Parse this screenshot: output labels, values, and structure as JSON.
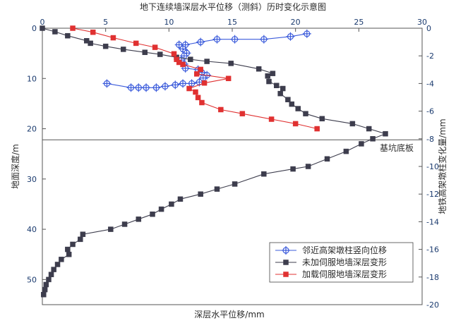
{
  "chart_data": {
    "type": "line",
    "title": "地下连续墙深层水平位移（测斜）历时变化示意图",
    "xlabel": "深层水平位移/mm",
    "ylabel_left": "地面深度/m",
    "ylabel_right": "地铁高架墩柱变化量/mm",
    "x_axis": {
      "min": 0,
      "max": 30,
      "ticks": [
        0,
        5,
        10,
        15,
        20,
        25,
        30
      ]
    },
    "y_left": {
      "min": 0,
      "max": 55,
      "ticks": [
        0,
        10,
        20,
        30,
        40,
        50
      ],
      "inverted": true
    },
    "y_right": {
      "min": 0,
      "max": -20,
      "ticks": [
        0,
        -2,
        -4,
        -6,
        -8,
        -10,
        -12,
        -14,
        -16,
        -18,
        -20
      ]
    },
    "annotation": {
      "text": "基坑底板",
      "depth": 22.2
    },
    "legend_position": "bottom-right",
    "series": [
      {
        "name": "邻近高架墩柱竖向位移",
        "axis": "right",
        "color": "#3b5bdb",
        "marker": "plus-circle",
        "points": [
          [
            20.9,
            -0.4
          ],
          [
            19.6,
            -0.6
          ],
          [
            17.5,
            -0.8
          ],
          [
            15.2,
            -0.8
          ],
          [
            13.8,
            -0.8
          ],
          [
            12.5,
            -1.0
          ],
          [
            11.3,
            -1.2
          ],
          [
            10.8,
            -1.2
          ],
          [
            11.1,
            -1.5
          ],
          [
            11.3,
            -1.7
          ],
          [
            11.4,
            -1.8
          ],
          [
            11.2,
            -2.0
          ],
          [
            11.0,
            -2.3
          ],
          [
            11.2,
            -2.6
          ],
          [
            11.3,
            -2.9
          ],
          [
            12.3,
            -3.0
          ],
          [
            12.6,
            -3.2
          ],
          [
            13.0,
            -3.4
          ],
          [
            12.7,
            -3.6
          ],
          [
            12.4,
            -3.9
          ],
          [
            11.8,
            -4.0
          ],
          [
            11.1,
            -4.0
          ],
          [
            10.5,
            -4.1
          ],
          [
            9.7,
            -4.2
          ],
          [
            9.0,
            -4.3
          ],
          [
            8.2,
            -4.3
          ],
          [
            7.6,
            -4.3
          ],
          [
            7.0,
            -4.3
          ],
          [
            5.1,
            -4.0
          ]
        ]
      },
      {
        "name": "未加伺服地墙深层变形",
        "axis": "left",
        "color": "#3d3d4d",
        "marker": "square",
        "points": [
          [
            0,
            0
          ],
          [
            1.0,
            0.7
          ],
          [
            2.0,
            1.5
          ],
          [
            3.5,
            2.5
          ],
          [
            3.8,
            3.0
          ],
          [
            5.0,
            3.6
          ],
          [
            6.4,
            4.2
          ],
          [
            8.1,
            4.8
          ],
          [
            9.3,
            5.2
          ],
          [
            10.6,
            5.8
          ],
          [
            11.7,
            6.2
          ],
          [
            13.0,
            6.6
          ],
          [
            14.9,
            7.0
          ],
          [
            17.1,
            8.1
          ],
          [
            18.2,
            9.0
          ],
          [
            17.8,
            9.5
          ],
          [
            17.9,
            10.6
          ],
          [
            18.5,
            11.4
          ],
          [
            19.0,
            12.0
          ],
          [
            18.8,
            13.0
          ],
          [
            19.4,
            14.2
          ],
          [
            19.7,
            15.1
          ],
          [
            20.2,
            16.0
          ],
          [
            20.8,
            17.0
          ],
          [
            22.1,
            18.0
          ],
          [
            24.5,
            19.0
          ],
          [
            25.8,
            20.0
          ],
          [
            27.1,
            21.0
          ],
          [
            26.1,
            22.0
          ],
          [
            25.2,
            23.0
          ],
          [
            24.0,
            24.5
          ],
          [
            22.5,
            26.0
          ],
          [
            21.0,
            27.5
          ],
          [
            19.8,
            28.0
          ],
          [
            17.5,
            29.0
          ],
          [
            15.2,
            31.0
          ],
          [
            13.8,
            32.0
          ],
          [
            12.5,
            33.0
          ],
          [
            10.9,
            34.0
          ],
          [
            10.2,
            35.0
          ],
          [
            9.4,
            36.0
          ],
          [
            8.7,
            37.0
          ],
          [
            7.6,
            38.0
          ],
          [
            6.5,
            39.0
          ],
          [
            5.4,
            40.0
          ],
          [
            3.2,
            41.0
          ],
          [
            3.0,
            42.0
          ],
          [
            2.4,
            43.0
          ],
          [
            2.0,
            44.0
          ],
          [
            2.1,
            45.0
          ],
          [
            1.5,
            46.0
          ],
          [
            1.2,
            47.0
          ],
          [
            0.9,
            48.0
          ],
          [
            0.7,
            49.0
          ],
          [
            0.5,
            50.0
          ],
          [
            0.3,
            51.0
          ],
          [
            0.2,
            52.0
          ],
          [
            0.1,
            53.0
          ]
        ]
      },
      {
        "name": "加载伺服地墙深层变形",
        "axis": "left",
        "color": "#e03131",
        "marker": "square",
        "points": [
          [
            2.4,
            0
          ],
          [
            4.0,
            0.8
          ],
          [
            5.6,
            1.9
          ],
          [
            7.4,
            3.0
          ],
          [
            8.9,
            3.8
          ],
          [
            10.4,
            5.1
          ],
          [
            10.6,
            6.2
          ],
          [
            10.8,
            6.8
          ],
          [
            11.1,
            7.2
          ],
          [
            12.5,
            8.2
          ],
          [
            12.2,
            9.1
          ],
          [
            14.7,
            10.0
          ],
          [
            12.8,
            10.9
          ],
          [
            11.6,
            12.0
          ],
          [
            12.1,
            12.7
          ],
          [
            12.3,
            13.8
          ],
          [
            12.6,
            14.8
          ],
          [
            14.1,
            16.2
          ],
          [
            15.8,
            17.0
          ],
          [
            18.1,
            18.1
          ],
          [
            20.0,
            19.0
          ],
          [
            21.7,
            20.0
          ]
        ]
      }
    ]
  }
}
